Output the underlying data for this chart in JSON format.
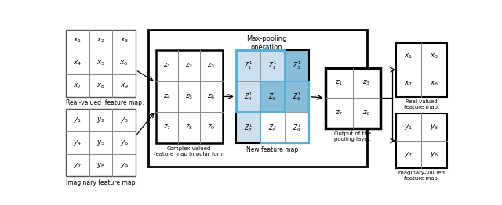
{
  "bg_color": "#ffffff",
  "lc": "#888888",
  "labels": {
    "real_map": "Real-valued  feature map.",
    "imag_map": "Imaginary feature map.",
    "complex_map": "Complex-valued\nfeature map in polar form",
    "new_feature": "New feature map",
    "output_pooling": "Output of the\npooling layer.",
    "real_out": "Real valued\nfeature map.",
    "imag_out": "Imaginary-valued\nfeature map.",
    "maxpool_label": "Max-pooling\noperation"
  },
  "blue_light": "#cce0f0",
  "blue_mid": "#88bdd8",
  "blue_border": "#5aafd4",
  "real_grid": [
    [
      "x_1",
      "x_2",
      "x_3"
    ],
    [
      "x_4",
      "x_5",
      "x_6"
    ],
    [
      "x_7",
      "x_8",
      "x_9"
    ]
  ],
  "imag_grid": [
    [
      "y_1",
      "y_2",
      "y_3"
    ],
    [
      "y_4",
      "y_5",
      "y_6"
    ],
    [
      "y_7",
      "y_8",
      "y_9"
    ]
  ],
  "complex_grid": [
    [
      "z_1",
      "z_2",
      "z_3"
    ],
    [
      "z_4",
      "z_5",
      "z_6"
    ],
    [
      "z_7",
      "z_8",
      "z_9"
    ]
  ],
  "new_feat_grid": [
    [
      "Z^1_1",
      "Z^1_2",
      "Z^1_3"
    ],
    [
      "Z^1_4",
      "Z^1_5",
      "Z^1_6"
    ],
    [
      "Z^1_7",
      "Z^1_8",
      "Z^1_9"
    ]
  ],
  "output_grid": [
    [
      "z_1",
      "z_3"
    ],
    [
      "z_7",
      "z_6"
    ]
  ],
  "real_out_grid": [
    [
      "x_1",
      "x_3"
    ],
    [
      "x_7",
      "x_6"
    ]
  ],
  "imag_out_grid": [
    [
      "y_1",
      "y_3"
    ],
    [
      "y_7",
      "y_6"
    ]
  ]
}
